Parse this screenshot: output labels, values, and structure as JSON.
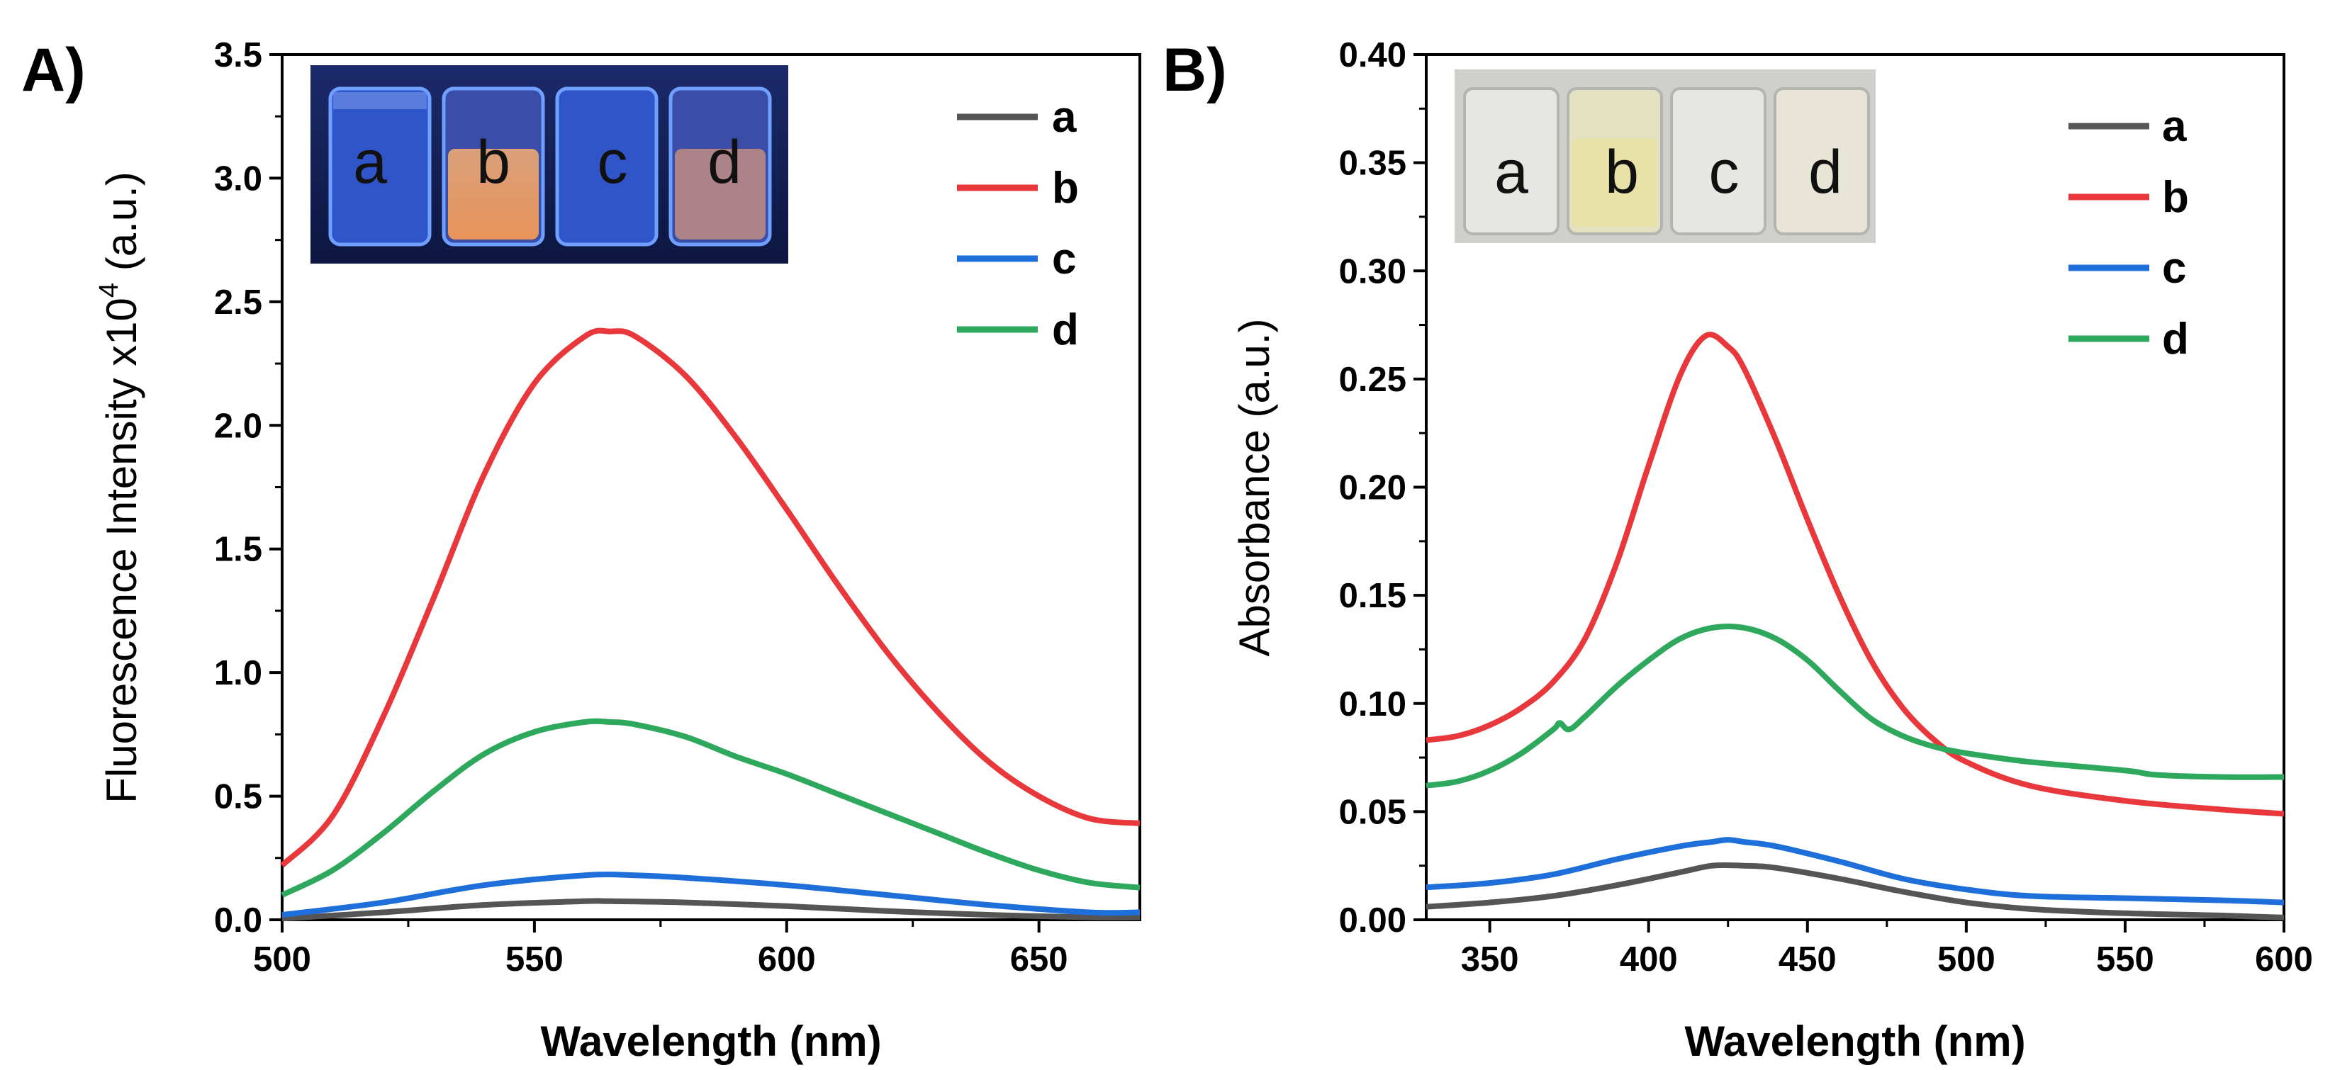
{
  "chart_data": [
    {
      "panel": "A)",
      "type": "line",
      "xlabel": "Wavelength (nm)",
      "ylabel_prefix": "Fluorescence Intensity x10",
      "ylabel_sup": "4",
      "ylabel_suffix": " (a.u.)",
      "xlim": [
        500,
        670
      ],
      "ylim": [
        0,
        3.5
      ],
      "xticks": [
        500,
        550,
        600,
        650
      ],
      "xtick_labels": [
        "500",
        "550",
        "600",
        "650"
      ],
      "yticks": [
        0,
        0.5,
        1.0,
        1.5,
        2.0,
        2.5,
        3.0,
        3.5
      ],
      "ytick_labels": [
        "0.0",
        "0.5",
        "1.0",
        "1.5",
        "2.0",
        "2.5",
        "3.0",
        "3.5"
      ],
      "legend_position": "top-right",
      "inset": {
        "description": "vials under UV light",
        "labels": [
          "a",
          "b",
          "c",
          "d"
        ]
      },
      "series": [
        {
          "name": "a",
          "color": "#555555",
          "x": [
            500,
            520,
            540,
            560,
            565,
            580,
            600,
            620,
            640,
            660,
            670
          ],
          "y": [
            0.005,
            0.03,
            0.06,
            0.075,
            0.075,
            0.07,
            0.055,
            0.035,
            0.02,
            0.01,
            0.01
          ]
        },
        {
          "name": "b",
          "color": "#e8383b",
          "x": [
            500,
            510,
            520,
            530,
            540,
            550,
            560,
            565,
            570,
            580,
            590,
            600,
            610,
            620,
            630,
            640,
            650,
            660,
            670
          ],
          "y": [
            0.22,
            0.42,
            0.82,
            1.3,
            1.8,
            2.17,
            2.36,
            2.38,
            2.36,
            2.2,
            1.95,
            1.66,
            1.36,
            1.08,
            0.84,
            0.64,
            0.5,
            0.41,
            0.39
          ]
        },
        {
          "name": "c",
          "color": "#1e6fd9",
          "x": [
            500,
            520,
            540,
            560,
            570,
            580,
            600,
            620,
            640,
            660,
            670
          ],
          "y": [
            0.02,
            0.07,
            0.14,
            0.18,
            0.18,
            0.17,
            0.14,
            0.1,
            0.06,
            0.03,
            0.03
          ]
        },
        {
          "name": "d",
          "color": "#2ea85c",
          "x": [
            500,
            510,
            520,
            530,
            540,
            550,
            560,
            565,
            570,
            580,
            590,
            600,
            610,
            620,
            630,
            640,
            650,
            660,
            670
          ],
          "y": [
            0.1,
            0.2,
            0.35,
            0.52,
            0.67,
            0.76,
            0.8,
            0.8,
            0.79,
            0.74,
            0.66,
            0.59,
            0.51,
            0.43,
            0.35,
            0.27,
            0.2,
            0.15,
            0.13
          ]
        }
      ]
    },
    {
      "panel": "B)",
      "type": "line",
      "xlabel": "Wavelength (nm)",
      "ylabel": "Absorbance (a.u.)",
      "xlim": [
        330,
        600
      ],
      "ylim": [
        0,
        0.4
      ],
      "xticks": [
        350,
        400,
        450,
        500,
        550,
        600
      ],
      "xtick_labels": [
        "350",
        "400",
        "450",
        "500",
        "550",
        "600"
      ],
      "yticks": [
        0,
        0.05,
        0.1,
        0.15,
        0.2,
        0.25,
        0.3,
        0.35,
        0.4
      ],
      "ytick_labels": [
        "0.00",
        "0.05",
        "0.10",
        "0.15",
        "0.20",
        "0.25",
        "0.30",
        "0.35",
        "0.40"
      ],
      "legend_position": "top-right",
      "inset": {
        "description": "vials in daylight",
        "labels": [
          "a",
          "b",
          "c",
          "d"
        ]
      },
      "series": [
        {
          "name": "a",
          "color": "#555555",
          "x": [
            330,
            350,
            370,
            390,
            410,
            420,
            430,
            440,
            460,
            480,
            500,
            520,
            550,
            580,
            600
          ],
          "y": [
            0.006,
            0.008,
            0.011,
            0.016,
            0.022,
            0.025,
            0.025,
            0.024,
            0.019,
            0.013,
            0.008,
            0.005,
            0.003,
            0.002,
            0.001
          ]
        },
        {
          "name": "b",
          "color": "#e8383b",
          "x": [
            330,
            340,
            350,
            360,
            370,
            380,
            390,
            400,
            410,
            418,
            425,
            430,
            440,
            450,
            460,
            470,
            480,
            490,
            500,
            520,
            550,
            580,
            600
          ],
          "y": [
            0.083,
            0.085,
            0.09,
            0.098,
            0.11,
            0.13,
            0.165,
            0.21,
            0.252,
            0.27,
            0.265,
            0.255,
            0.222,
            0.185,
            0.15,
            0.12,
            0.098,
            0.083,
            0.073,
            0.062,
            0.055,
            0.051,
            0.049
          ]
        },
        {
          "name": "c",
          "color": "#1e6fd9",
          "x": [
            330,
            350,
            370,
            390,
            410,
            420,
            425,
            430,
            440,
            460,
            480,
            500,
            520,
            550,
            580,
            600
          ],
          "y": [
            0.015,
            0.017,
            0.021,
            0.028,
            0.034,
            0.036,
            0.037,
            0.036,
            0.034,
            0.027,
            0.019,
            0.014,
            0.011,
            0.01,
            0.009,
            0.008
          ]
        },
        {
          "name": "d",
          "color": "#2ea85c",
          "x": [
            330,
            340,
            350,
            360,
            370,
            372,
            375,
            380,
            390,
            400,
            410,
            420,
            430,
            440,
            450,
            460,
            470,
            480,
            490,
            500,
            520,
            550,
            560,
            580,
            600
          ],
          "y": [
            0.062,
            0.064,
            0.069,
            0.077,
            0.088,
            0.091,
            0.088,
            0.094,
            0.108,
            0.12,
            0.13,
            0.135,
            0.135,
            0.13,
            0.12,
            0.106,
            0.093,
            0.085,
            0.08,
            0.077,
            0.073,
            0.069,
            0.067,
            0.066,
            0.066
          ]
        }
      ]
    }
  ]
}
